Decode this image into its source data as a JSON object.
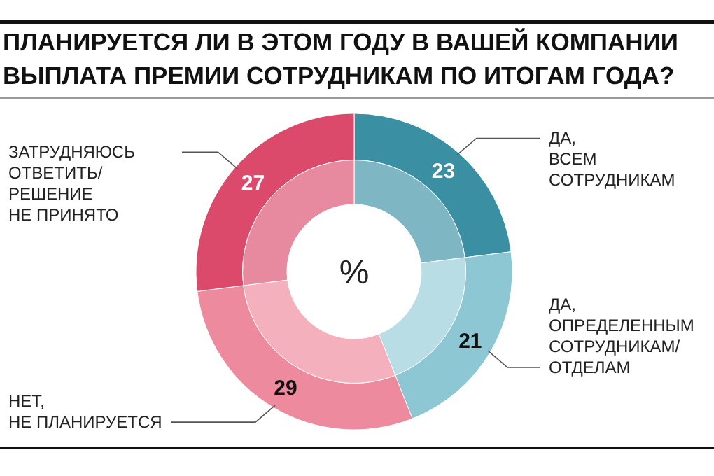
{
  "chart_data": {
    "type": "donut",
    "title": "ПЛАНИРУЕТСЯ ЛИ В ЭТОМ ГОДУ В ВАШЕЙ КОМПАНИИ\nВЫПЛАТА ПРЕМИИ СОТРУДНИКАМ ПО ИТОГАМ ГОДА?",
    "categories": [
      "ДА,\nВСЕМ\nСОТРУДНИКАМ",
      "ДА,\nОПРЕДЕЛЕННЫМ\nСОТРУДНИКАМ/\nОТДЕЛАМ",
      "НЕТ,\nНЕ ПЛАНИРУЕТСЯ",
      "ЗАТРУДНЯЮСЬ\nОТВЕТИТЬ/\nРЕШЕНИЕ\nНЕ ПРИНЯТО"
    ],
    "series": [
      {
        "values": [
          23,
          21,
          29,
          27
        ],
        "colors": [
          "#3a8fa3",
          "#8dc7d4",
          "#ee8a9e",
          "#db4a6b"
        ],
        "value_labels": [
          "23",
          "21",
          "29",
          "27"
        ]
      },
      {
        "values": [
          23,
          21,
          29,
          27
        ],
        "colors": [
          "#7fb6c4",
          "#b8dde5",
          "#f4b0bd",
          "#e88a9f"
        ]
      }
    ],
    "annotations": [
      "%"
    ]
  }
}
